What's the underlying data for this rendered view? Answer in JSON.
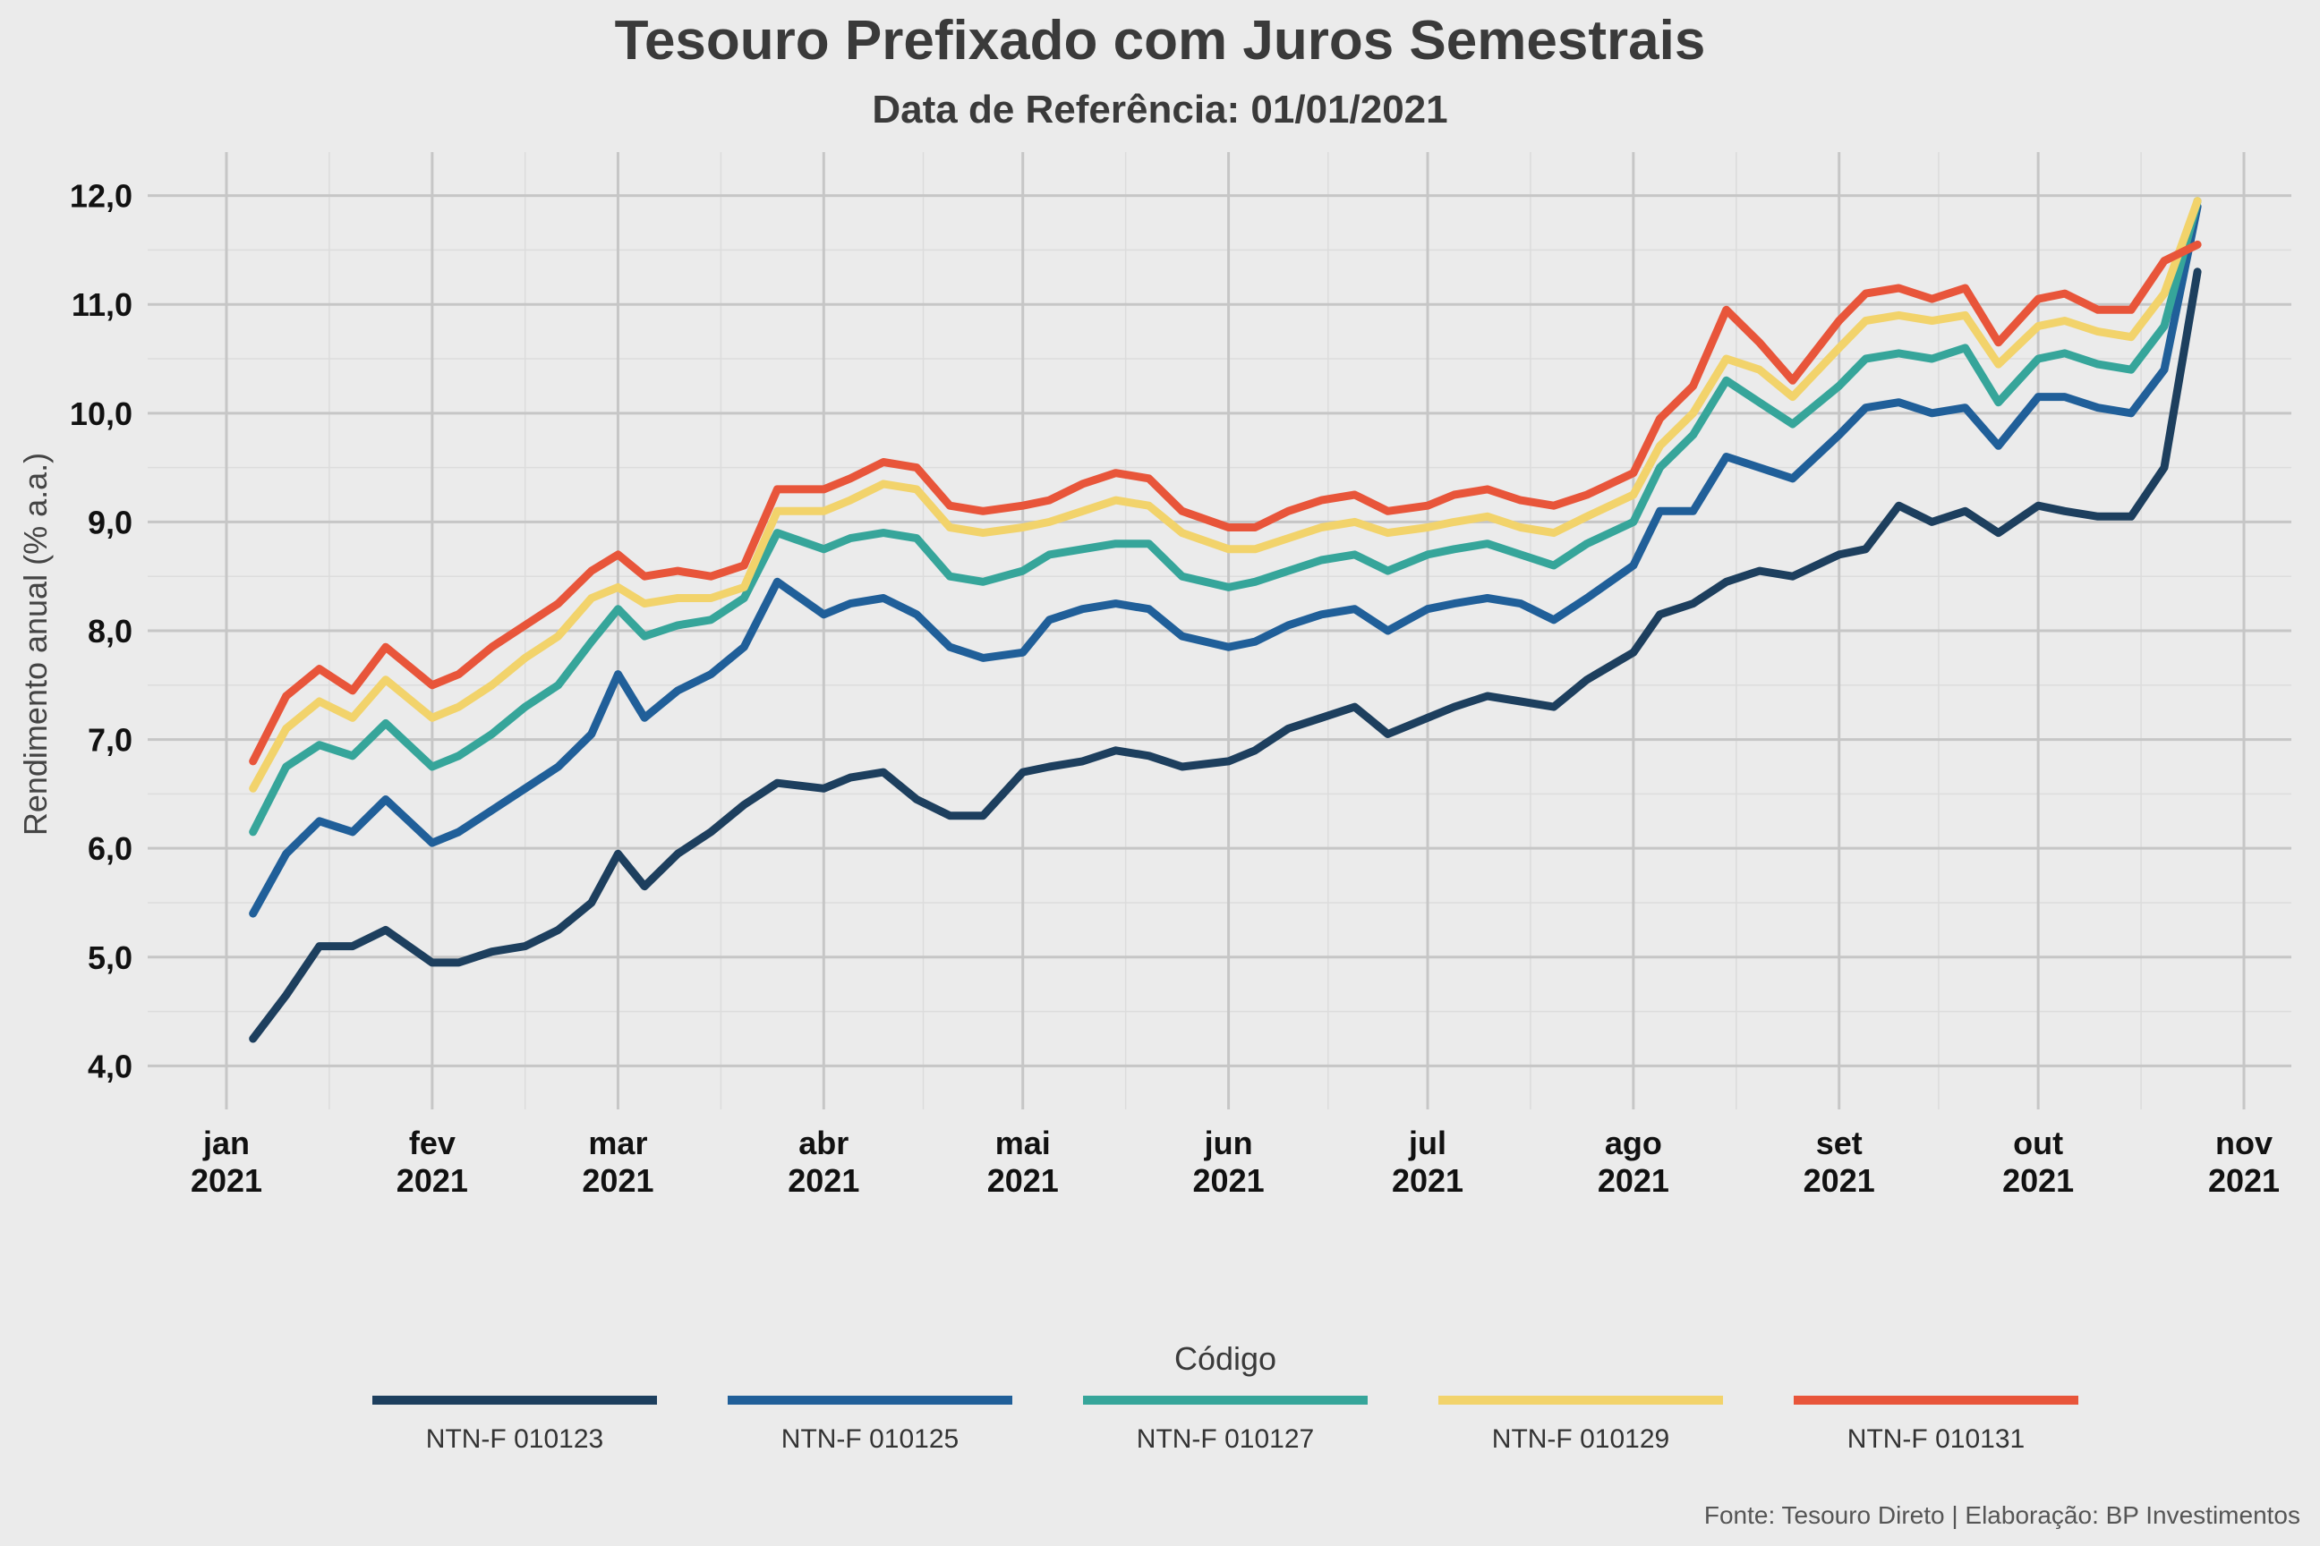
{
  "title": "Tesouro Prefixado com Juros Semestrais",
  "subtitle": "Data de Referência: 01/01/2021",
  "caption": "Fonte: Tesouro Direto | Elaboração: BP Investimentos",
  "legend_title": "Código",
  "chart_data": {
    "type": "line",
    "ylabel": "Rendimento anual (% a.a.)",
    "ylim": [
      3.6,
      12.4
    ],
    "y_ticks": [
      "4,0",
      "5,0",
      "6,0",
      "7,0",
      "8,0",
      "9,0",
      "10,0",
      "11,0",
      "12,0"
    ],
    "x_ticks": [
      {
        "month": "jan",
        "year": "2021",
        "date": "2021-01-01"
      },
      {
        "month": "fev",
        "year": "2021",
        "date": "2021-02-01"
      },
      {
        "month": "mar",
        "year": "2021",
        "date": "2021-03-01"
      },
      {
        "month": "abr",
        "year": "2021",
        "date": "2021-04-01"
      },
      {
        "month": "mai",
        "year": "2021",
        "date": "2021-05-01"
      },
      {
        "month": "jun",
        "year": "2021",
        "date": "2021-06-01"
      },
      {
        "month": "jul",
        "year": "2021",
        "date": "2021-07-01"
      },
      {
        "month": "ago",
        "year": "2021",
        "date": "2021-08-01"
      },
      {
        "month": "set",
        "year": "2021",
        "date": "2021-09-01"
      },
      {
        "month": "out",
        "year": "2021",
        "date": "2021-10-01"
      },
      {
        "month": "nov",
        "year": "2021",
        "date": "2021-11-01"
      }
    ],
    "x": [
      "2021-01-05",
      "2021-01-10",
      "2021-01-15",
      "2021-01-20",
      "2021-01-25",
      "2021-02-01",
      "2021-02-05",
      "2021-02-10",
      "2021-02-15",
      "2021-02-20",
      "2021-02-25",
      "2021-03-01",
      "2021-03-05",
      "2021-03-10",
      "2021-03-15",
      "2021-03-20",
      "2021-03-25",
      "2021-04-01",
      "2021-04-05",
      "2021-04-10",
      "2021-04-15",
      "2021-04-20",
      "2021-04-25",
      "2021-05-01",
      "2021-05-05",
      "2021-05-10",
      "2021-05-15",
      "2021-05-20",
      "2021-05-25",
      "2021-06-01",
      "2021-06-05",
      "2021-06-10",
      "2021-06-15",
      "2021-06-20",
      "2021-06-25",
      "2021-07-01",
      "2021-07-05",
      "2021-07-10",
      "2021-07-15",
      "2021-07-20",
      "2021-07-25",
      "2021-08-01",
      "2021-08-05",
      "2021-08-10",
      "2021-08-15",
      "2021-08-20",
      "2021-08-25",
      "2021-09-01",
      "2021-09-05",
      "2021-09-10",
      "2021-09-15",
      "2021-09-20",
      "2021-09-25",
      "2021-10-01",
      "2021-10-05",
      "2021-10-10",
      "2021-10-15",
      "2021-10-20",
      "2021-10-25"
    ],
    "series": [
      {
        "name": "NTN-F 010123",
        "color": "#1d3f5e",
        "values": [
          4.25,
          4.65,
          5.1,
          5.1,
          5.25,
          4.95,
          4.95,
          5.05,
          5.1,
          5.25,
          5.5,
          5.95,
          5.65,
          5.95,
          6.15,
          6.4,
          6.6,
          6.55,
          6.65,
          6.7,
          6.45,
          6.3,
          6.3,
          6.7,
          6.75,
          6.8,
          6.9,
          6.85,
          6.75,
          6.8,
          6.9,
          7.1,
          7.2,
          7.3,
          7.05,
          7.2,
          7.3,
          7.4,
          7.35,
          7.3,
          7.55,
          7.8,
          8.15,
          8.25,
          8.45,
          8.55,
          8.5,
          8.7,
          8.75,
          9.15,
          9.0,
          9.1,
          8.9,
          9.15,
          9.1,
          9.05,
          9.05,
          9.5,
          11.3
        ]
      },
      {
        "name": "NTN-F 010125",
        "color": "#205f99",
        "values": [
          5.4,
          5.95,
          6.25,
          6.15,
          6.45,
          6.05,
          6.15,
          6.35,
          6.55,
          6.75,
          7.05,
          7.6,
          7.2,
          7.45,
          7.6,
          7.85,
          8.45,
          8.15,
          8.25,
          8.3,
          8.15,
          7.85,
          7.75,
          7.8,
          8.1,
          8.2,
          8.25,
          8.2,
          7.95,
          7.85,
          7.9,
          8.05,
          8.15,
          8.2,
          8.0,
          8.2,
          8.25,
          8.3,
          8.25,
          8.1,
          8.3,
          8.6,
          9.1,
          9.1,
          9.6,
          9.5,
          9.4,
          9.8,
          10.05,
          10.1,
          10.0,
          10.05,
          9.7,
          10.15,
          10.15,
          10.05,
          10.0,
          10.4,
          11.9
        ]
      },
      {
        "name": "NTN-F 010127",
        "color": "#36a59a",
        "values": [
          6.15,
          6.75,
          6.95,
          6.85,
          7.15,
          6.75,
          6.85,
          7.05,
          7.3,
          7.5,
          7.9,
          8.2,
          7.95,
          8.05,
          8.1,
          8.3,
          8.9,
          8.75,
          8.85,
          8.9,
          8.85,
          8.5,
          8.45,
          8.55,
          8.7,
          8.75,
          8.8,
          8.8,
          8.5,
          8.4,
          8.45,
          8.55,
          8.65,
          8.7,
          8.55,
          8.7,
          8.75,
          8.8,
          8.7,
          8.6,
          8.8,
          9.0,
          9.5,
          9.8,
          10.3,
          10.1,
          9.9,
          10.25,
          10.5,
          10.55,
          10.5,
          10.6,
          10.1,
          10.5,
          10.55,
          10.45,
          10.4,
          10.8,
          11.95
        ]
      },
      {
        "name": "NTN-F 010129",
        "color": "#f2d36b",
        "values": [
          6.55,
          7.1,
          7.35,
          7.2,
          7.55,
          7.2,
          7.3,
          7.5,
          7.75,
          7.95,
          8.3,
          8.4,
          8.25,
          8.3,
          8.3,
          8.4,
          9.1,
          9.1,
          9.2,
          9.35,
          9.3,
          8.95,
          8.9,
          8.95,
          9.0,
          9.1,
          9.2,
          9.15,
          8.9,
          8.75,
          8.75,
          8.85,
          8.95,
          9.0,
          8.9,
          8.95,
          9.0,
          9.05,
          8.95,
          8.9,
          9.05,
          9.25,
          9.7,
          10.0,
          10.5,
          10.4,
          10.15,
          10.6,
          10.85,
          10.9,
          10.85,
          10.9,
          10.45,
          10.8,
          10.85,
          10.75,
          10.7,
          11.1,
          11.95
        ]
      },
      {
        "name": "NTN-F 010131",
        "color": "#e8553a",
        "values": [
          6.8,
          7.4,
          7.65,
          7.45,
          7.85,
          7.5,
          7.6,
          7.85,
          8.05,
          8.25,
          8.55,
          8.7,
          8.5,
          8.55,
          8.5,
          8.6,
          9.3,
          9.3,
          9.4,
          9.55,
          9.5,
          9.15,
          9.1,
          9.15,
          9.2,
          9.35,
          9.45,
          9.4,
          9.1,
          8.95,
          8.95,
          9.1,
          9.2,
          9.25,
          9.1,
          9.15,
          9.25,
          9.3,
          9.2,
          9.15,
          9.25,
          9.45,
          9.95,
          10.25,
          10.95,
          10.65,
          10.3,
          10.85,
          11.1,
          11.15,
          11.05,
          11.15,
          10.65,
          11.05,
          11.1,
          10.95,
          10.95,
          11.4,
          11.55
        ]
      }
    ],
    "legend": "bottom",
    "grid": true
  }
}
